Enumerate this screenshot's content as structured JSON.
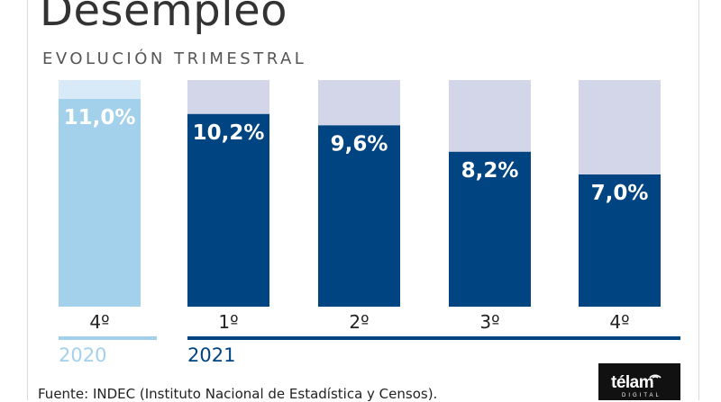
{
  "header": {
    "title": "Desempleo",
    "subtitle": "EVOLUCIÓN TRIMESTRAL"
  },
  "footer": {
    "source": "Fuente: INDEC (Instituto Nacional de Estadística y Censos).",
    "logo_text": "télam",
    "logo_subtext": "DIGITAL"
  },
  "colors": {
    "bar_2020": "#a3d0eb",
    "bar_2020_bg": "#d8eaf7",
    "bar_2021": "#004481",
    "bar_2021_bg": "#d2d6e8",
    "year_2020": "#a3d0eb",
    "year_2021": "#004481"
  },
  "chart_data": {
    "type": "bar",
    "title": "Desempleo",
    "subtitle": "EVOLUCIÓN TRIMESTRAL",
    "ylim": [
      0,
      12
    ],
    "grid": false,
    "bars": [
      {
        "quarter": "4º",
        "year": "2020",
        "value": 11.0,
        "label": "11,0%"
      },
      {
        "quarter": "1º",
        "year": "2021",
        "value": 10.2,
        "label": "10,2%"
      },
      {
        "quarter": "2º",
        "year": "2021",
        "value": 9.6,
        "label": "9,6%"
      },
      {
        "quarter": "3º",
        "year": "2021",
        "value": 8.2,
        "label": "8,2%"
      },
      {
        "quarter": "4º",
        "year": "2021",
        "value": 7.0,
        "label": "7,0%"
      }
    ],
    "year_groups": [
      {
        "label": "2020",
        "year": "2020"
      },
      {
        "label": "2021",
        "year": "2021"
      }
    ]
  }
}
